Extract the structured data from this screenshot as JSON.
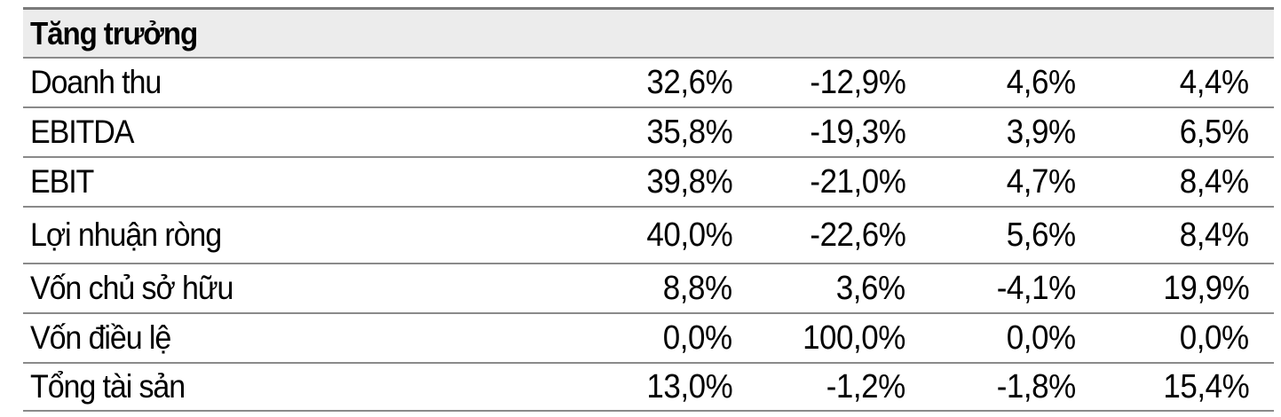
{
  "table": {
    "header": "Tăng trưởng",
    "rows": [
      {
        "label": "Doanh thu",
        "values": [
          "32,6%",
          "-12,9%",
          "4,6%",
          "4,4%"
        ]
      },
      {
        "label": "EBITDA",
        "values": [
          "35,8%",
          "-19,3%",
          "3,9%",
          "6,5%"
        ]
      },
      {
        "label": "EBIT",
        "values": [
          "39,8%",
          "-21,0%",
          "4,7%",
          "8,4%"
        ]
      },
      {
        "label": "Lợi nhuận ròng",
        "values": [
          "40,0%",
          "-22,6%",
          "5,6%",
          "8,4%"
        ]
      },
      {
        "label": "Vốn chủ sở hữu",
        "values": [
          "8,8%",
          "3,6%",
          "-4,1%",
          "19,9%"
        ]
      },
      {
        "label": "Vốn điều lệ",
        "values": [
          "0,0%",
          "100,0%",
          "0,0%",
          "0,0%"
        ]
      },
      {
        "label": "Tổng tài sản",
        "values": [
          "13,0%",
          "-1,2%",
          "-1,8%",
          "15,4%"
        ]
      }
    ]
  }
}
